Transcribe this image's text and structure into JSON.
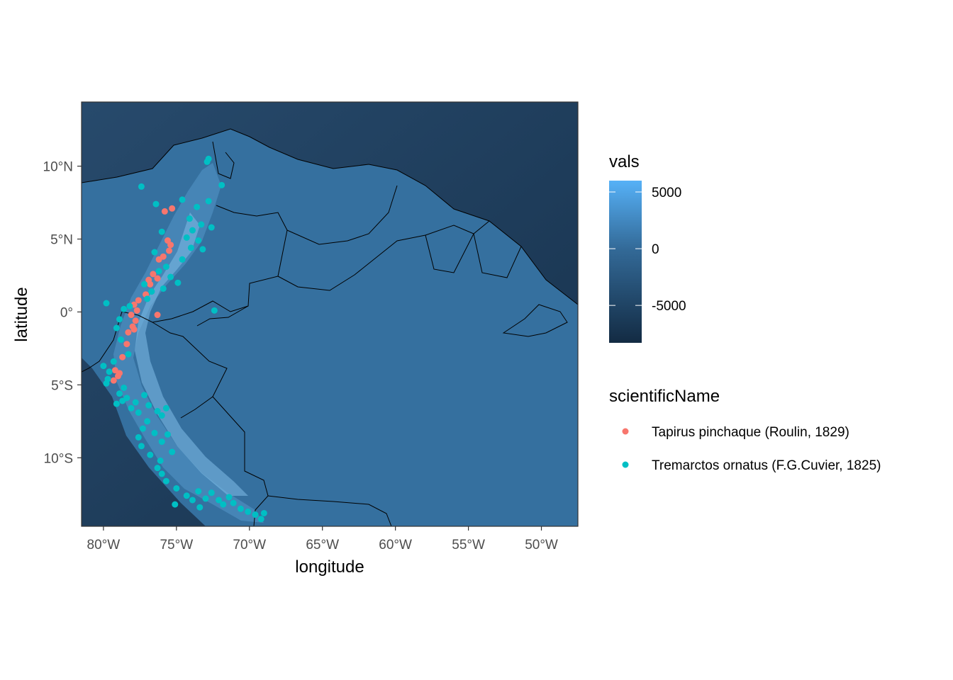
{
  "chart_data": {
    "type": "scatter",
    "basemap": "elevation raster with country borders",
    "xlabel": "longitude",
    "ylabel": "latitude",
    "xlim": [
      -81.5,
      -47.5
    ],
    "ylim": [
      -14.7,
      14.4
    ],
    "x_ticks": [
      {
        "value": -80,
        "label": "80°W"
      },
      {
        "value": -75,
        "label": "75°W"
      },
      {
        "value": -70,
        "label": "70°W"
      },
      {
        "value": -65,
        "label": "65°W"
      },
      {
        "value": -60,
        "label": "60°W"
      },
      {
        "value": -55,
        "label": "55°W"
      },
      {
        "value": -50,
        "label": "50°W"
      }
    ],
    "y_ticks": [
      {
        "value": 10,
        "label": "10°N"
      },
      {
        "value": 5,
        "label": "5°N"
      },
      {
        "value": 0,
        "label": "0°"
      },
      {
        "value": -5,
        "label": "5°S"
      },
      {
        "value": -10,
        "label": "10°S"
      }
    ],
    "fill_scale": {
      "title": "vals",
      "range": [
        -8300,
        6000
      ],
      "breaks": [
        {
          "value": 5000,
          "label": "5000"
        },
        {
          "value": 0,
          "label": "0"
        },
        {
          "value": -5000,
          "label": "-5000"
        }
      ],
      "low_color": "#132b43",
      "high_color": "#56b1f7"
    },
    "color_legend": {
      "title": "scientificName"
    },
    "series": [
      {
        "name": "Tapirus pinchaque (Roulin, 1829)",
        "color": "#f8766d",
        "points": [
          [
            -75.8,
            6.9
          ],
          [
            -75.3,
            7.1
          ],
          [
            -75.6,
            4.9
          ],
          [
            -75.4,
            4.6
          ],
          [
            -75.5,
            4.2
          ],
          [
            -75.9,
            3.8
          ],
          [
            -76.2,
            3.6
          ],
          [
            -76.6,
            2.6
          ],
          [
            -76.9,
            2.2
          ],
          [
            -76.3,
            2.3
          ],
          [
            -76.8,
            1.9
          ],
          [
            -77.1,
            1.2
          ],
          [
            -77.6,
            0.8
          ],
          [
            -77.9,
            0.5
          ],
          [
            -77.7,
            0.1
          ],
          [
            -78.1,
            -0.2
          ],
          [
            -77.8,
            -0.6
          ],
          [
            -78.0,
            -1.0
          ],
          [
            -78.3,
            -1.4
          ],
          [
            -77.9,
            -1.2
          ],
          [
            -78.4,
            -2.2
          ],
          [
            -78.7,
            -3.1
          ],
          [
            -79.2,
            -4.0
          ],
          [
            -79.0,
            -4.4
          ],
          [
            -79.3,
            -4.7
          ],
          [
            -78.9,
            -4.2
          ],
          [
            -76.3,
            -0.2
          ]
        ]
      },
      {
        "name": "Tremarctos ornatus (F.G.Cuvier, 1825)",
        "color": "#00bfc4",
        "points": [
          [
            -72.8,
            10.5
          ],
          [
            -72.9,
            10.3
          ],
          [
            -71.9,
            8.7
          ],
          [
            -77.4,
            8.6
          ],
          [
            -74.6,
            7.7
          ],
          [
            -72.8,
            7.6
          ],
          [
            -76.4,
            7.4
          ],
          [
            -73.6,
            7.2
          ],
          [
            -74.1,
            6.4
          ],
          [
            -73.3,
            6.0
          ],
          [
            -72.6,
            5.8
          ],
          [
            -73.9,
            5.6
          ],
          [
            -76.0,
            5.5
          ],
          [
            -74.3,
            5.1
          ],
          [
            -73.5,
            4.9
          ],
          [
            -74.0,
            4.4
          ],
          [
            -76.5,
            4.1
          ],
          [
            -73.2,
            4.3
          ],
          [
            -74.6,
            3.6
          ],
          [
            -75.7,
            3.1
          ],
          [
            -76.2,
            2.8
          ],
          [
            -75.4,
            2.4
          ],
          [
            -74.9,
            2.0
          ],
          [
            -75.9,
            1.6
          ],
          [
            -77.2,
            1.9
          ],
          [
            -76.7,
            1.4
          ],
          [
            -77.0,
            0.9
          ],
          [
            -72.4,
            0.1
          ],
          [
            -78.2,
            0.4
          ],
          [
            -78.6,
            0.2
          ],
          [
            -79.8,
            0.6
          ],
          [
            -78.9,
            -0.5
          ],
          [
            -79.1,
            -1.1
          ],
          [
            -78.8,
            -1.9
          ],
          [
            -78.3,
            -2.9
          ],
          [
            -79.3,
            -3.4
          ],
          [
            -79.6,
            -4.1
          ],
          [
            -79.8,
            -4.9
          ],
          [
            -78.6,
            -5.2
          ],
          [
            -78.9,
            -5.6
          ],
          [
            -78.4,
            -5.9
          ],
          [
            -77.8,
            -6.2
          ],
          [
            -77.2,
            -5.7
          ],
          [
            -78.1,
            -6.6
          ],
          [
            -77.6,
            -6.9
          ],
          [
            -76.9,
            -6.4
          ],
          [
            -76.3,
            -6.8
          ],
          [
            -76.0,
            -7.1
          ],
          [
            -75.7,
            -6.6
          ],
          [
            -77.0,
            -7.5
          ],
          [
            -77.3,
            -8.0
          ],
          [
            -76.5,
            -8.3
          ],
          [
            -77.6,
            -8.6
          ],
          [
            -76.0,
            -8.9
          ],
          [
            -75.6,
            -8.4
          ],
          [
            -77.4,
            -9.2
          ],
          [
            -76.8,
            -9.8
          ],
          [
            -76.1,
            -10.2
          ],
          [
            -75.3,
            -9.6
          ],
          [
            -76.3,
            -10.7
          ],
          [
            -76.0,
            -11.1
          ],
          [
            -75.7,
            -11.6
          ],
          [
            -75.0,
            -12.1
          ],
          [
            -74.3,
            -12.6
          ],
          [
            -73.9,
            -12.9
          ],
          [
            -73.5,
            -12.3
          ],
          [
            -73.0,
            -12.8
          ],
          [
            -72.6,
            -12.4
          ],
          [
            -72.1,
            -12.9
          ],
          [
            -71.8,
            -13.2
          ],
          [
            -71.4,
            -12.7
          ],
          [
            -71.1,
            -13.1
          ],
          [
            -70.6,
            -13.5
          ],
          [
            -70.1,
            -13.7
          ],
          [
            -69.6,
            -13.9
          ],
          [
            -69.2,
            -14.2
          ],
          [
            -69.0,
            -13.8
          ],
          [
            -73.4,
            -13.4
          ],
          [
            -75.1,
            -13.2
          ],
          [
            -80.0,
            -3.7
          ],
          [
            -79.7,
            -4.6
          ],
          [
            -79.1,
            -6.3
          ],
          [
            -78.7,
            -6.1
          ]
        ]
      }
    ]
  }
}
